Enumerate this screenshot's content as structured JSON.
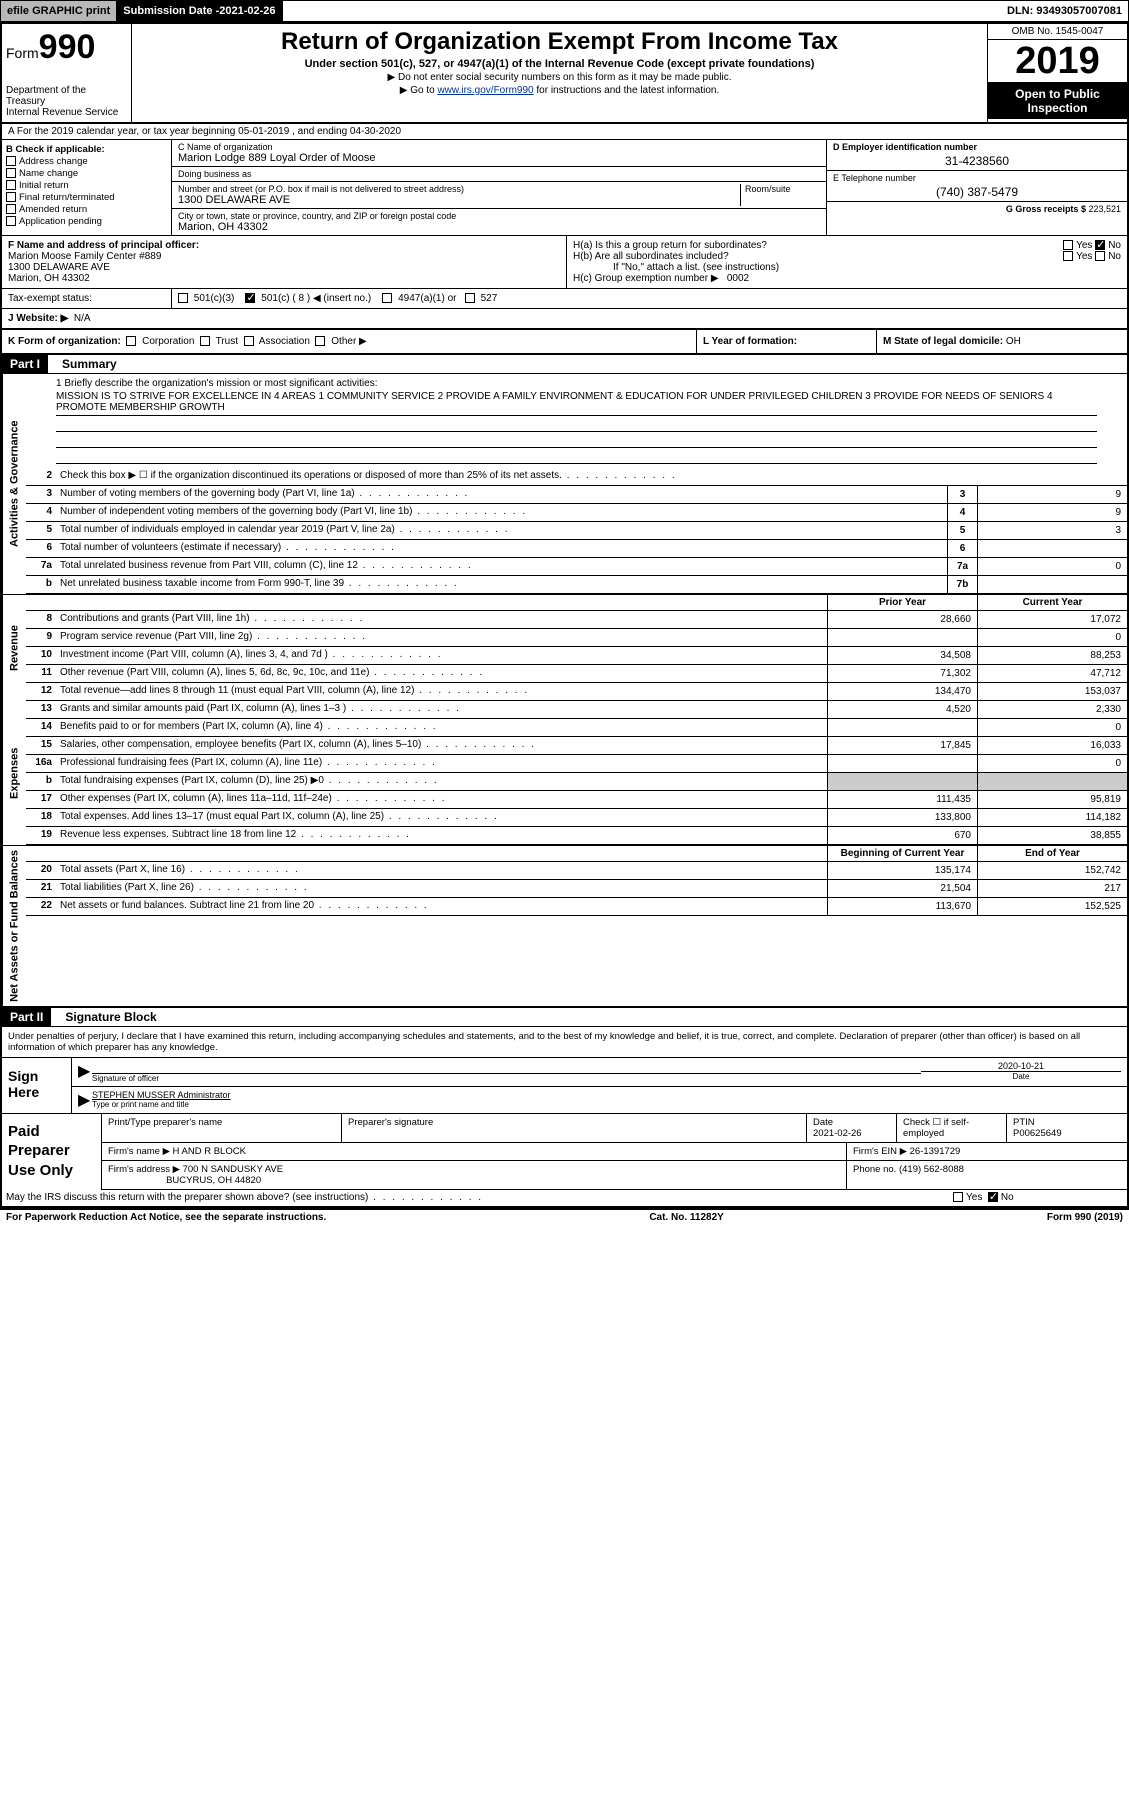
{
  "topbar": {
    "efile": "efile GRAPHIC print",
    "submission_label": "Submission Date - ",
    "submission_date": "2021-02-26",
    "dln_label": "DLN: ",
    "dln": "93493057007081"
  },
  "header": {
    "form_prefix": "Form",
    "form_number": "990",
    "dept1": "Department of the Treasury",
    "dept2": "Internal Revenue Service",
    "title": "Return of Organization Exempt From Income Tax",
    "subtitle": "Under section 501(c), 527, or 4947(a)(1) of the Internal Revenue Code (except private foundations)",
    "note1": "▶ Do not enter social security numbers on this form as it may be made public.",
    "note2_pre": "▶ Go to ",
    "note2_link": "www.irs.gov/Form990",
    "note2_post": " for instructions and the latest information.",
    "omb": "OMB No. 1545-0047",
    "year": "2019",
    "inspection": "Open to Public Inspection"
  },
  "row_a": "A For the 2019 calendar year, or tax year beginning 05-01-2019   , and ending 04-30-2020",
  "col_b": {
    "header": "B Check if applicable:",
    "items": [
      "Address change",
      "Name change",
      "Initial return",
      "Final return/terminated",
      "Amended return",
      "Application pending"
    ]
  },
  "col_c": {
    "name_label": "C Name of organization",
    "name": "Marion Lodge 889 Loyal Order of Moose",
    "dba_label": "Doing business as",
    "dba": "",
    "addr_label": "Number and street (or P.O. box if mail is not delivered to street address)",
    "room_label": "Room/suite",
    "addr": "1300 DELAWARE AVE",
    "city_label": "City or town, state or province, country, and ZIP or foreign postal code",
    "city": "Marion, OH  43302"
  },
  "col_d": {
    "ein_label": "D Employer identification number",
    "ein": "31-4238560",
    "tel_label": "E Telephone number",
    "tel": "(740) 387-5479",
    "gross_label": "G Gross receipts $ ",
    "gross": "223,521"
  },
  "section_f": {
    "label": "F  Name and address of principal officer:",
    "name": "Marion Moose Family Center #889",
    "addr": "1300 DELAWARE AVE",
    "city": "Marion, OH  43302"
  },
  "section_h": {
    "ha": "H(a)  Is this a group return for subordinates?",
    "hb": "H(b)  Are all subordinates included?",
    "hb_note": "If \"No,\" attach a list. (see instructions)",
    "hc": "H(c)  Group exemption number ▶",
    "hc_val": "0002",
    "yes": "Yes",
    "no": "No"
  },
  "tax_status": {
    "label": "Tax-exempt status:",
    "opts": [
      "501(c)(3)",
      "501(c) ( 8 ) ◀ (insert no.)",
      "4947(a)(1) or",
      "527"
    ]
  },
  "website": {
    "label": "J Website: ▶",
    "val": "N/A"
  },
  "row_k": {
    "k": "K Form of organization:",
    "opts": [
      "Corporation",
      "Trust",
      "Association",
      "Other ▶"
    ],
    "l": "L Year of formation:",
    "m": "M State of legal domicile: ",
    "m_val": "OH"
  },
  "part1": {
    "label": "Part I",
    "title": "Summary"
  },
  "part2": {
    "label": "Part II",
    "title": "Signature Block"
  },
  "mission": {
    "q": "1  Briefly describe the organization's mission or most significant activities:",
    "text": "MISSION IS TO STRIVE FOR EXCELLENCE IN 4 AREAS 1 COMMUNITY SERVICE 2 PROVIDE A FAMILY ENVIRONMENT & EDUCATION FOR UNDER PRIVILEGED CHILDREN 3 PROVIDE FOR NEEDS OF SENIORS 4 PROMOTE MEMBERSHIP GROWTH"
  },
  "gov_lines": [
    {
      "num": "2",
      "desc": "Check this box ▶ ☐  if the organization discontinued its operations or disposed of more than 25% of its net assets.",
      "box": "",
      "val": ""
    },
    {
      "num": "3",
      "desc": "Number of voting members of the governing body (Part VI, line 1a)",
      "box": "3",
      "val": "9"
    },
    {
      "num": "4",
      "desc": "Number of independent voting members of the governing body (Part VI, line 1b)",
      "box": "4",
      "val": "9"
    },
    {
      "num": "5",
      "desc": "Total number of individuals employed in calendar year 2019 (Part V, line 2a)",
      "box": "5",
      "val": "3"
    },
    {
      "num": "6",
      "desc": "Total number of volunteers (estimate if necessary)",
      "box": "6",
      "val": ""
    },
    {
      "num": "7a",
      "desc": "Total unrelated business revenue from Part VIII, column (C), line 12",
      "box": "7a",
      "val": "0"
    },
    {
      "num": "b",
      "desc": "Net unrelated business taxable income from Form 990-T, line 39",
      "box": "7b",
      "val": ""
    }
  ],
  "col_headers": {
    "prior": "Prior Year",
    "current": "Current Year",
    "begin": "Beginning of Current Year",
    "end": "End of Year"
  },
  "revenue_lines": [
    {
      "num": "8",
      "desc": "Contributions and grants (Part VIII, line 1h)",
      "prior": "28,660",
      "curr": "17,072"
    },
    {
      "num": "9",
      "desc": "Program service revenue (Part VIII, line 2g)",
      "prior": "",
      "curr": "0"
    },
    {
      "num": "10",
      "desc": "Investment income (Part VIII, column (A), lines 3, 4, and 7d )",
      "prior": "34,508",
      "curr": "88,253"
    },
    {
      "num": "11",
      "desc": "Other revenue (Part VIII, column (A), lines 5, 6d, 8c, 9c, 10c, and 11e)",
      "prior": "71,302",
      "curr": "47,712"
    },
    {
      "num": "12",
      "desc": "Total revenue—add lines 8 through 11 (must equal Part VIII, column (A), line 12)",
      "prior": "134,470",
      "curr": "153,037"
    }
  ],
  "expense_lines": [
    {
      "num": "13",
      "desc": "Grants and similar amounts paid (Part IX, column (A), lines 1–3 )",
      "prior": "4,520",
      "curr": "2,330"
    },
    {
      "num": "14",
      "desc": "Benefits paid to or for members (Part IX, column (A), line 4)",
      "prior": "",
      "curr": "0"
    },
    {
      "num": "15",
      "desc": "Salaries, other compensation, employee benefits (Part IX, column (A), lines 5–10)",
      "prior": "17,845",
      "curr": "16,033"
    },
    {
      "num": "16a",
      "desc": "Professional fundraising fees (Part IX, column (A), line 11e)",
      "prior": "",
      "curr": "0"
    },
    {
      "num": "b",
      "desc": "Total fundraising expenses (Part IX, column (D), line 25) ▶0",
      "prior": "SHADE",
      "curr": "SHADE"
    },
    {
      "num": "17",
      "desc": "Other expenses (Part IX, column (A), lines 11a–11d, 11f–24e)",
      "prior": "111,435",
      "curr": "95,819"
    },
    {
      "num": "18",
      "desc": "Total expenses. Add lines 13–17 (must equal Part IX, column (A), line 25)",
      "prior": "133,800",
      "curr": "114,182"
    },
    {
      "num": "19",
      "desc": "Revenue less expenses. Subtract line 18 from line 12",
      "prior": "670",
      "curr": "38,855"
    }
  ],
  "netassets_lines": [
    {
      "num": "20",
      "desc": "Total assets (Part X, line 16)",
      "prior": "135,174",
      "curr": "152,742"
    },
    {
      "num": "21",
      "desc": "Total liabilities (Part X, line 26)",
      "prior": "21,504",
      "curr": "217"
    },
    {
      "num": "22",
      "desc": "Net assets or fund balances. Subtract line 21 from line 20",
      "prior": "113,670",
      "curr": "152,525"
    }
  ],
  "side_labels": {
    "gov": "Activities & Governance",
    "rev": "Revenue",
    "exp": "Expenses",
    "net": "Net Assets or Fund Balances"
  },
  "signature": {
    "decl": "Under penalties of perjury, I declare that I have examined this return, including accompanying schedules and statements, and to the best of my knowledge and belief, it is true, correct, and complete. Declaration of preparer (other than officer) is based on all information of which preparer has any knowledge.",
    "sign_here": "Sign Here",
    "sig_officer": "Signature of officer",
    "date_label": "Date",
    "date": "2020-10-21",
    "name": "STEPHEN MUSSER  Administrator",
    "name_label": "Type or print name and title"
  },
  "paid": {
    "label": "Paid Preparer Use Only",
    "col_name": "Print/Type preparer's name",
    "col_sig": "Preparer's signature",
    "col_date": "Date",
    "date": "2021-02-26",
    "check_label": "Check ☐ if self-employed",
    "ptin_label": "PTIN",
    "ptin": "P00625649",
    "firm_name_label": "Firm's name    ▶",
    "firm_name": "H AND R BLOCK",
    "firm_ein_label": "Firm's EIN ▶",
    "firm_ein": "26-1391729",
    "firm_addr_label": "Firm's address ▶",
    "firm_addr1": "700 N SANDUSKY AVE",
    "firm_addr2": "BUCYRUS, OH  44820",
    "phone_label": "Phone no. ",
    "phone": "(419) 562-8088",
    "discuss": "May the IRS discuss this return with the preparer shown above? (see instructions)",
    "yes": "Yes",
    "no": "No"
  },
  "footer": {
    "left": "For Paperwork Reduction Act Notice, see the separate instructions.",
    "mid": "Cat. No. 11282Y",
    "right": "Form 990 (2019)"
  },
  "colors": {
    "black": "#000000",
    "white": "#ffffff",
    "gray_shade": "#cccccc",
    "topbar_gray": "#b8b8b8",
    "link_blue": "#003399"
  }
}
